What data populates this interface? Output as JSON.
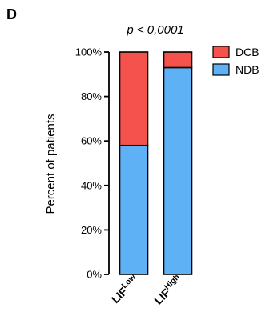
{
  "panel_label": "D",
  "chart_data": {
    "type": "bar",
    "stacked": true,
    "annotation": "p < 0,0001",
    "categories": [
      {
        "main": "LIF",
        "sup": "Low"
      },
      {
        "main": "LIF",
        "sup": "High"
      }
    ],
    "series": [
      {
        "name": "NDB",
        "values": [
          58,
          93
        ],
        "color": "#5eb1f5"
      },
      {
        "name": "DCB",
        "values": [
          42,
          7
        ],
        "color": "#f5524e"
      }
    ],
    "ylabel": "Percent of patients",
    "ylim": [
      0,
      100
    ],
    "yticks": [
      {
        "value": 0,
        "label": "0%"
      },
      {
        "value": 20,
        "label": "20%"
      },
      {
        "value": 40,
        "label": "40%"
      },
      {
        "value": 60,
        "label": "60%"
      },
      {
        "value": 80,
        "label": "80%"
      },
      {
        "value": 100,
        "label": "100%"
      }
    ],
    "legend": {
      "placement": "top-right",
      "entries": [
        {
          "label": "DCB",
          "color": "#f5524e"
        },
        {
          "label": "NDB",
          "color": "#5eb1f5"
        }
      ]
    },
    "grid": false
  }
}
